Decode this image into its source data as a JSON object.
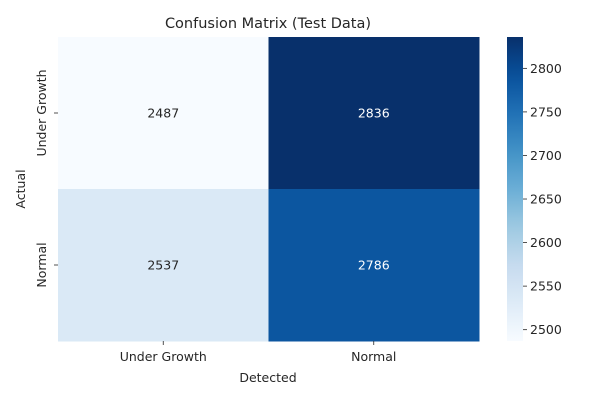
{
  "chart_data": {
    "type": "heatmap",
    "title": "Confusion Matrix (Test Data)",
    "xlabel": "Detected",
    "ylabel": "Actual",
    "x_categories": [
      "Under Growth",
      "Normal"
    ],
    "y_categories": [
      "Under Growth",
      "Normal"
    ],
    "values": [
      [
        2487,
        2836
      ],
      [
        2537,
        2786
      ]
    ],
    "colormap": "Blues",
    "colorbar": {
      "range": [
        2487,
        2836
      ],
      "ticks": [
        2500,
        2550,
        2600,
        2650,
        2700,
        2750,
        2800
      ]
    }
  }
}
